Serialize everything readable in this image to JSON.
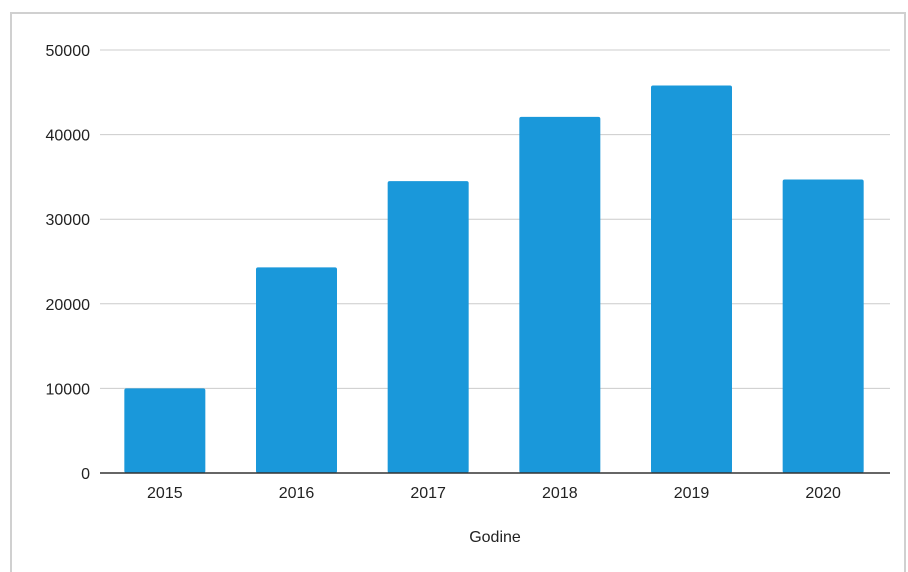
{
  "chart_data": {
    "type": "bar",
    "title": "",
    "xlabel": "Godine",
    "ylabel": "",
    "categories": [
      "2015",
      "2016",
      "2017",
      "2018",
      "2019",
      "2020"
    ],
    "series": [
      {
        "values": [
          10000,
          24300,
          34500,
          42100,
          45800,
          34700
        ]
      }
    ],
    "ylim": [
      0,
      50000
    ],
    "yticks": [
      "0",
      "10000",
      "20000",
      "30000",
      "40000",
      "50000"
    ],
    "grid": true,
    "legend": "none",
    "colors": {
      "bar": "#1a98da",
      "grid": "#cccccc",
      "axis": "#333333"
    }
  }
}
